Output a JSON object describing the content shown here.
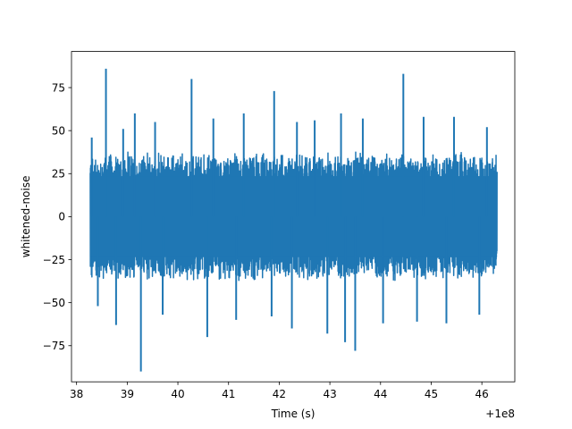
{
  "chart_data": {
    "type": "line",
    "title": "",
    "xlabel": "Time (s)",
    "ylabel": "whitened-noise",
    "x_offset_label": "+1e8",
    "xlim": [
      37.9,
      46.65
    ],
    "ylim": [
      -96,
      96
    ],
    "x_ticks": [
      38,
      39,
      40,
      41,
      42,
      43,
      44,
      45,
      46
    ],
    "x_tick_labels": [
      "38",
      "39",
      "40",
      "41",
      "42",
      "43",
      "44",
      "45",
      "46"
    ],
    "y_ticks": [
      -75,
      -50,
      -25,
      0,
      25,
      50,
      75
    ],
    "y_tick_labels": [
      "−75",
      "−50",
      "−25",
      "0",
      "25",
      "50",
      "75"
    ],
    "grid": false,
    "series": [
      {
        "color": "#1f77b4",
        "x_range": [
          38.27,
          46.3
        ],
        "typical_envelope": [
          -38,
          38
        ],
        "spikes": [
          {
            "x": 38.3,
            "y": 46
          },
          {
            "x": 38.58,
            "y": 86
          },
          {
            "x": 38.92,
            "y": 51
          },
          {
            "x": 39.15,
            "y": 60
          },
          {
            "x": 39.55,
            "y": 55
          },
          {
            "x": 40.27,
            "y": 80
          },
          {
            "x": 40.7,
            "y": 57
          },
          {
            "x": 41.3,
            "y": 60
          },
          {
            "x": 41.9,
            "y": 73
          },
          {
            "x": 42.35,
            "y": 55
          },
          {
            "x": 42.7,
            "y": 56
          },
          {
            "x": 43.22,
            "y": 60
          },
          {
            "x": 43.65,
            "y": 57
          },
          {
            "x": 44.45,
            "y": 83
          },
          {
            "x": 44.85,
            "y": 58
          },
          {
            "x": 45.45,
            "y": 58
          },
          {
            "x": 46.1,
            "y": 52
          },
          {
            "x": 38.42,
            "y": -52
          },
          {
            "x": 38.78,
            "y": -63
          },
          {
            "x": 39.27,
            "y": -90
          },
          {
            "x": 39.7,
            "y": -57
          },
          {
            "x": 40.58,
            "y": -70
          },
          {
            "x": 41.15,
            "y": -60
          },
          {
            "x": 41.85,
            "y": -58
          },
          {
            "x": 42.25,
            "y": -65
          },
          {
            "x": 42.95,
            "y": -68
          },
          {
            "x": 43.3,
            "y": -73
          },
          {
            "x": 43.5,
            "y": -78
          },
          {
            "x": 44.05,
            "y": -62
          },
          {
            "x": 44.72,
            "y": -61
          },
          {
            "x": 45.3,
            "y": -62
          },
          {
            "x": 45.95,
            "y": -57
          }
        ]
      }
    ]
  }
}
